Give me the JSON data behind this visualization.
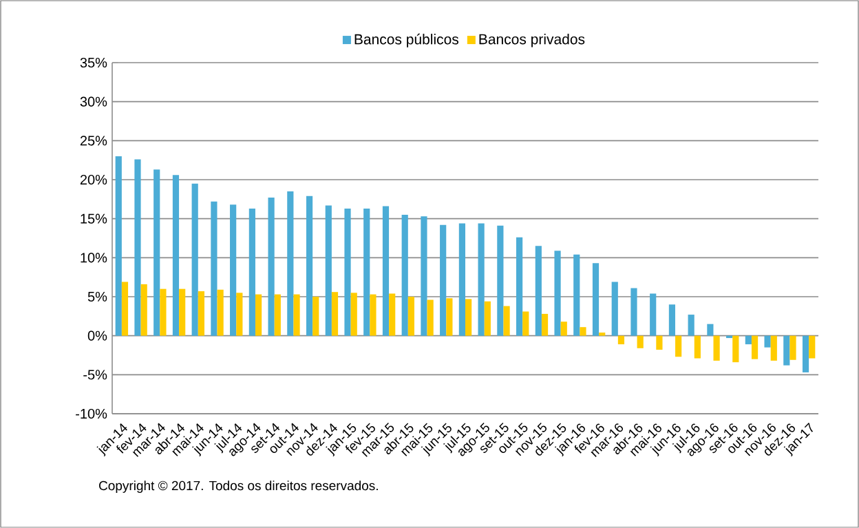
{
  "chart_data": {
    "type": "bar",
    "categories": [
      "jan-14",
      "fev-14",
      "mar-14",
      "abr-14",
      "mai-14",
      "jun-14",
      "jul-14",
      "ago-14",
      "set-14",
      "out-14",
      "nov-14",
      "dez-14",
      "jan-15",
      "fev-15",
      "mar-15",
      "abr-15",
      "mai-15",
      "jun-15",
      "jul-15",
      "ago-15",
      "set-15",
      "out-15",
      "nov-15",
      "dez-15",
      "jan-16",
      "fev-16",
      "mar-16",
      "abr-16",
      "mai-16",
      "jun-16",
      "jul-16",
      "ago-16",
      "set-16",
      "out-16",
      "nov-16",
      "dez-16",
      "jan-17"
    ],
    "series": [
      {
        "name": "Bancos públicos",
        "color": "#4bacd6",
        "values": [
          23.0,
          22.6,
          21.3,
          20.6,
          19.5,
          17.2,
          16.8,
          16.3,
          17.7,
          18.5,
          17.9,
          16.7,
          16.3,
          16.3,
          16.6,
          15.5,
          15.3,
          14.2,
          14.4,
          14.4,
          14.1,
          12.6,
          11.5,
          10.9,
          10.4,
          9.3,
          6.9,
          6.1,
          5.4,
          4.0,
          2.7,
          1.5,
          -0.3,
          -1.1,
          -1.5,
          -3.8,
          -4.7
        ]
      },
      {
        "name": "Bancos privados",
        "color": "#ffcc00",
        "values": [
          6.9,
          6.6,
          6.0,
          6.0,
          5.7,
          5.9,
          5.5,
          5.3,
          5.3,
          5.3,
          5.0,
          5.6,
          5.5,
          5.3,
          5.4,
          5.0,
          4.6,
          4.8,
          4.7,
          4.4,
          3.8,
          3.1,
          2.8,
          1.8,
          1.1,
          0.4,
          -1.1,
          -1.6,
          -1.8,
          -2.7,
          -2.9,
          -3.2,
          -3.4,
          -3.0,
          -3.2,
          -3.1,
          -2.9
        ]
      }
    ],
    "ylim": [
      -10,
      35
    ],
    "yticks": [
      {
        "value": -10,
        "label": "-10%"
      },
      {
        "value": -5,
        "label": "-5%"
      },
      {
        "value": 0,
        "label": "0%"
      },
      {
        "value": 5,
        "label": "5%"
      },
      {
        "value": 10,
        "label": "10%"
      },
      {
        "value": 15,
        "label": "15%"
      },
      {
        "value": 20,
        "label": "20%"
      },
      {
        "value": 25,
        "label": "25%"
      },
      {
        "value": 30,
        "label": "30%"
      },
      {
        "value": 35,
        "label": "35%"
      }
    ],
    "grid": "y",
    "legend": "top",
    "annotations": [
      "Copyright © 2017. Todos os direitos reservados."
    ]
  }
}
